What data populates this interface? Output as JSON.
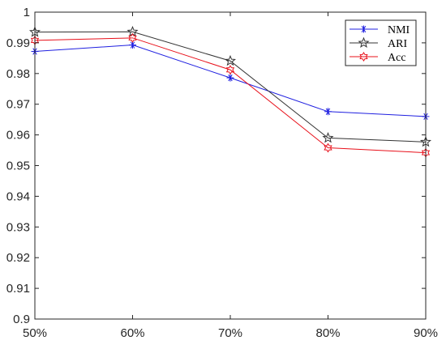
{
  "chart_data": {
    "type": "line",
    "title": "",
    "xlabel": "",
    "ylabel": "",
    "categories": [
      "50%",
      "60%",
      "70%",
      "80%",
      "90%"
    ],
    "ylim": [
      0.9,
      1.0
    ],
    "yticks": [
      "0.9",
      "0.91",
      "0.92",
      "0.93",
      "0.94",
      "0.95",
      "0.96",
      "0.97",
      "0.98",
      "0.99",
      "1"
    ],
    "grid": false,
    "legend_position": "top-right",
    "series": [
      {
        "name": "NMI",
        "color": "#1f1fe0",
        "marker": "asterisk",
        "values": [
          0.9872,
          0.9893,
          0.9786,
          0.9676,
          0.966
        ]
      },
      {
        "name": "ARI",
        "color": "#333333",
        "marker": "pentagram",
        "values": [
          0.9935,
          0.9936,
          0.9841,
          0.959,
          0.9577
        ]
      },
      {
        "name": "Acc",
        "color": "#e8101a",
        "marker": "hexagram",
        "values": [
          0.9908,
          0.9916,
          0.9812,
          0.9558,
          0.9542
        ]
      }
    ]
  }
}
